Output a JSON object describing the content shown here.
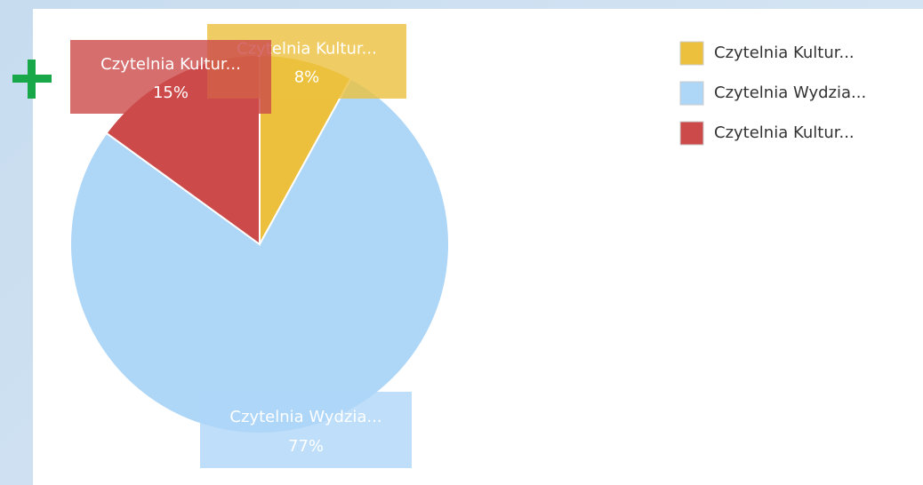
{
  "chart_data": {
    "type": "pie",
    "categories": [
      "Czytelnia Kultur...",
      "Czytelnia Wydzia...",
      "Czytelnia Kultur..."
    ],
    "values": [
      8,
      77,
      15
    ],
    "value_labels": [
      "8%",
      "77%",
      "15%"
    ],
    "colors": [
      "#ecc03d",
      "#aed6f7",
      "#cc4a4a"
    ],
    "legend": "top-right"
  }
}
